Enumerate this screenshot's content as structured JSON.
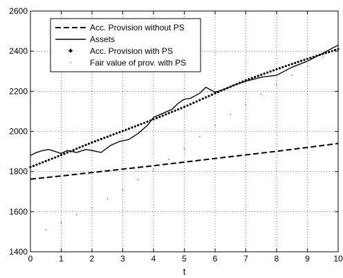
{
  "chart_data": {
    "type": "line",
    "title": "",
    "xlabel": "t",
    "ylabel": "",
    "xlim": [
      0,
      10
    ],
    "ylim": [
      1400,
      2600
    ],
    "grid": true,
    "legend_position": "top-left",
    "x_ticks": [
      "0",
      "1",
      "2",
      "3",
      "4",
      "5",
      "6",
      "7",
      "8",
      "9",
      "10"
    ],
    "y_ticks": [
      "1400",
      "1600",
      "1800",
      "2000",
      "2200",
      "2400",
      "2600"
    ],
    "series": [
      {
        "name": "Acc. Provision without PS",
        "style": "dashed",
        "color": "#000000",
        "x": [
          0,
          1,
          2,
          3,
          4,
          5,
          6,
          7,
          8,
          9,
          10
        ],
        "y": [
          1762,
          1778,
          1795,
          1812,
          1829,
          1847,
          1865,
          1883,
          1901,
          1920,
          1940
        ]
      },
      {
        "name": "Assets",
        "style": "solid",
        "color": "#000000",
        "x": [
          0,
          0.2,
          0.4,
          0.6,
          0.8,
          1.0,
          1.2,
          1.5,
          1.8,
          2.0,
          2.3,
          2.6,
          2.9,
          3.2,
          3.5,
          3.8,
          4.0,
          4.3,
          4.6,
          4.8,
          5.0,
          5.2,
          5.5,
          5.7,
          6.0,
          6.3,
          6.6,
          7.0,
          7.5,
          8.0,
          8.5,
          9.0,
          9.5,
          10.0
        ],
        "y": [
          1880,
          1895,
          1905,
          1910,
          1900,
          1890,
          1905,
          1895,
          1910,
          1905,
          1895,
          1930,
          1950,
          1960,
          1990,
          2030,
          2070,
          2090,
          2110,
          2140,
          2160,
          2165,
          2190,
          2220,
          2195,
          2210,
          2230,
          2250,
          2270,
          2280,
          2320,
          2350,
          2390,
          2430
        ]
      },
      {
        "name": "Acc. Provision with PS",
        "style": "dots",
        "color": "#000000",
        "x": [
          0,
          1,
          2,
          3,
          4,
          5,
          6,
          7,
          8,
          9,
          10
        ],
        "y": [
          1822,
          1882,
          1945,
          2002,
          2060,
          2122,
          2190,
          2255,
          2310,
          2362,
          2410
        ]
      },
      {
        "name": "Fair value of prov. with PS",
        "style": "sparse-dots",
        "color": "#555555",
        "x": [
          0.5,
          1,
          1.5,
          2,
          2.5,
          3,
          3.5,
          4,
          4.5,
          5,
          5.5,
          6,
          6.5,
          7,
          7.5,
          8,
          8.5,
          9,
          9.5,
          10
        ],
        "y": [
          1510,
          1545,
          1585,
          1620,
          1665,
          1710,
          1760,
          1810,
          1860,
          1915,
          1975,
          2030,
          2085,
          2135,
          2185,
          2235,
          2280,
          2325,
          2370,
          2410
        ]
      }
    ]
  }
}
